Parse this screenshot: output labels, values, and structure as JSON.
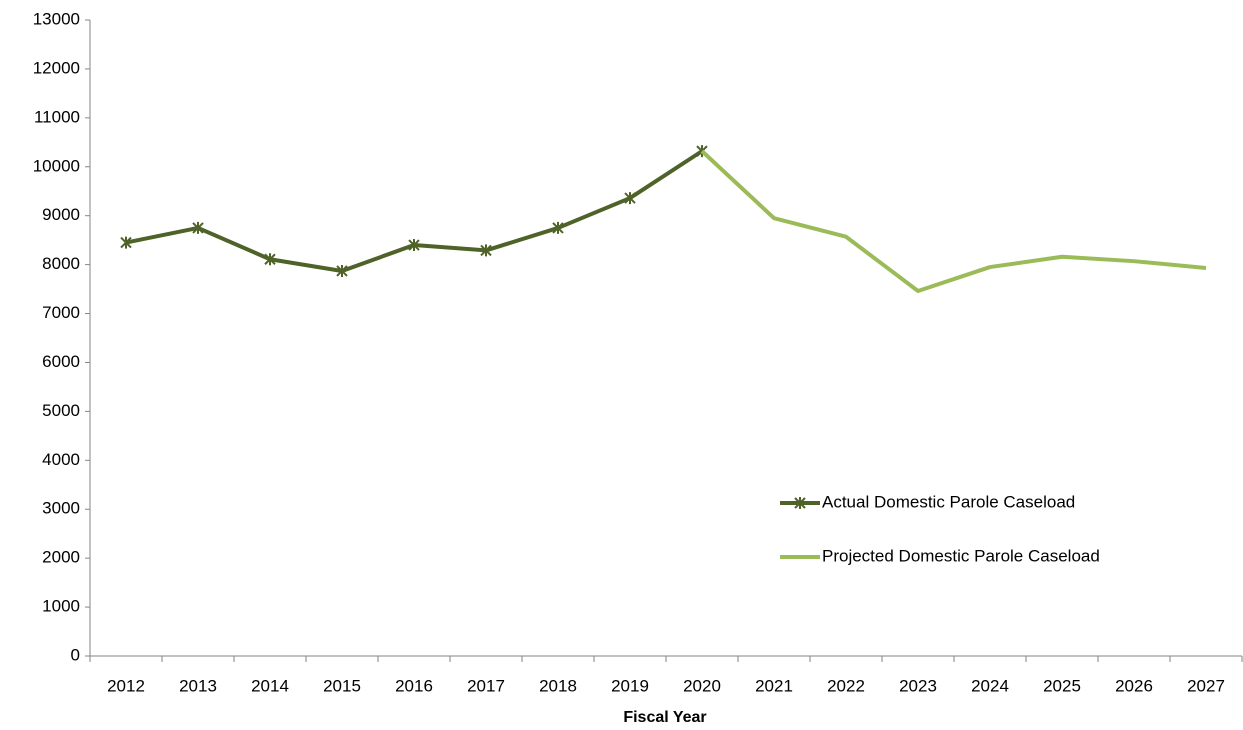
{
  "chart_data": {
    "type": "line",
    "x_label": "Fiscal Year",
    "categories": [
      "2012",
      "2013",
      "2014",
      "2015",
      "2016",
      "2017",
      "2018",
      "2019",
      "2020",
      "2021",
      "2022",
      "2023",
      "2024",
      "2025",
      "2026",
      "2027"
    ],
    "series": [
      {
        "name": "Actual Domestic Parole Caseload",
        "color": "#4f6228",
        "marker": "star",
        "values": [
          8450,
          8750,
          8110,
          7870,
          8400,
          8290,
          8750,
          9360,
          10320,
          null,
          null,
          null,
          null,
          null,
          null,
          null
        ]
      },
      {
        "name": "Projected Domestic Parole Caseload",
        "color": "#9bbb59",
        "values": [
          null,
          null,
          null,
          null,
          null,
          null,
          null,
          null,
          10320,
          8950,
          8570,
          7460,
          7950,
          8160,
          8070,
          7930
        ]
      }
    ],
    "ylim": [
      0,
      13000
    ],
    "yticks": [
      0,
      1000,
      2000,
      3000,
      4000,
      5000,
      6000,
      7000,
      8000,
      9000,
      10000,
      11000,
      12000,
      13000
    ],
    "grid": false,
    "legend": "lower right"
  }
}
